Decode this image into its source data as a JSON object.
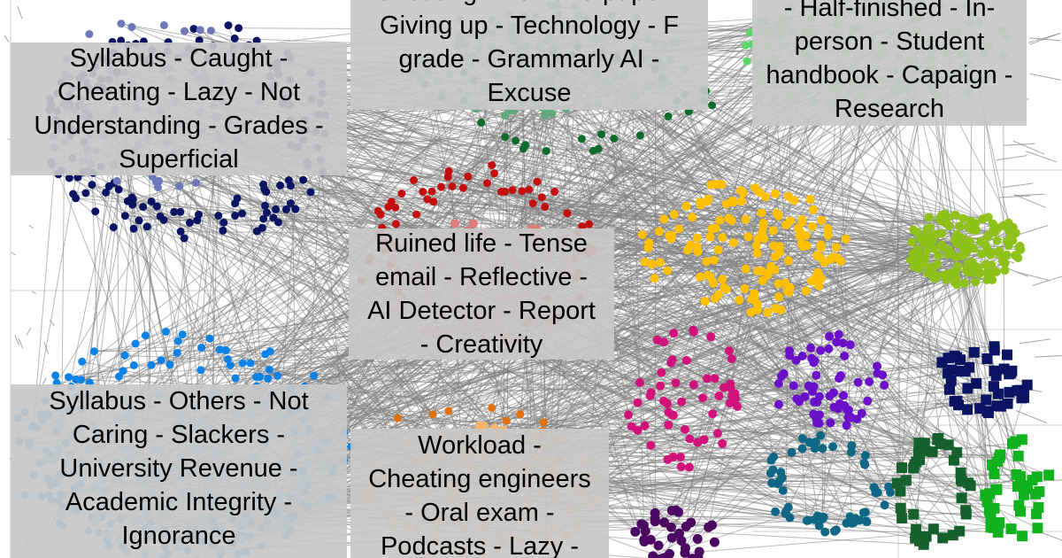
{
  "colors": {
    "background": "#ffffff",
    "edge": "#7f7f7f",
    "label_box": "#c8c8c8",
    "label_text": "#000000"
  },
  "clusters": [
    {
      "name": "navy-cluster",
      "color": "#0a1463",
      "shape": "circle"
    },
    {
      "name": "slate-blue-cluster",
      "color": "#6d78b8",
      "shape": "circle"
    },
    {
      "name": "sea-green-cluster",
      "color": "#5eaa7c",
      "shape": "circle"
    },
    {
      "name": "dark-green-cluster",
      "color": "#0f6b2c",
      "shape": "circle"
    },
    {
      "name": "light-green-cluster",
      "color": "#5ed66e",
      "shape": "circle"
    },
    {
      "name": "red-cluster",
      "color": "#c40f0f",
      "shape": "circle"
    },
    {
      "name": "salmon-cluster",
      "color": "#e07c7c",
      "shape": "circle"
    },
    {
      "name": "gold-cluster",
      "color": "#ffc000",
      "shape": "circle"
    },
    {
      "name": "lime-cluster",
      "color": "#8ec21b",
      "shape": "circle"
    },
    {
      "name": "magenta-cluster",
      "color": "#d1127a",
      "shape": "circle"
    },
    {
      "name": "violet-cluster",
      "color": "#6a10c9",
      "shape": "circle"
    },
    {
      "name": "navy-square-cluster",
      "color": "#0a1463",
      "shape": "square"
    },
    {
      "name": "teal-cluster",
      "color": "#0f6785",
      "shape": "circle"
    },
    {
      "name": "forest-square-cluster",
      "color": "#15602c",
      "shape": "square"
    },
    {
      "name": "green-square-cluster",
      "color": "#10b21e",
      "shape": "square"
    },
    {
      "name": "azure-cluster",
      "color": "#0a82e6",
      "shape": "circle"
    },
    {
      "name": "sky-blue-cluster",
      "color": "#6cbcf0",
      "shape": "circle"
    },
    {
      "name": "orange-cluster",
      "color": "#f7b26e",
      "shape": "circle"
    },
    {
      "name": "dark-orange-cluster",
      "color": "#e07010",
      "shape": "circle"
    },
    {
      "name": "purple-cluster",
      "color": "#4a0860",
      "shape": "circle"
    }
  ],
  "labels": [
    {
      "lines": [
        "Syllabus - Caught -",
        "Cheating - Lazy - Not",
        "Understanding - Grades -",
        "Superficial"
      ]
    },
    {
      "lines": [
        "Cheating - Pen and paper -",
        "Giving up - Technology - F",
        "grade - Grammarly AI -",
        "Excuse"
      ]
    },
    {
      "lines": [
        "- Half-finished - In-",
        "person - Student",
        "handbook - Capaign -",
        "Research"
      ]
    },
    {
      "lines": [
        "Ruined life - Tense",
        "email - Reflective -",
        "AI Detector - Report",
        "- Creativity"
      ]
    },
    {
      "lines": [
        "Syllabus - Others - Not",
        "Caring - Slackers -",
        "University Revenue -",
        "Academic Integrity -",
        "Ignorance"
      ]
    },
    {
      "lines": [
        "Workload -",
        "Cheating engineers",
        "- Oral exam -",
        "Podcasts - Lazy -"
      ]
    }
  ]
}
